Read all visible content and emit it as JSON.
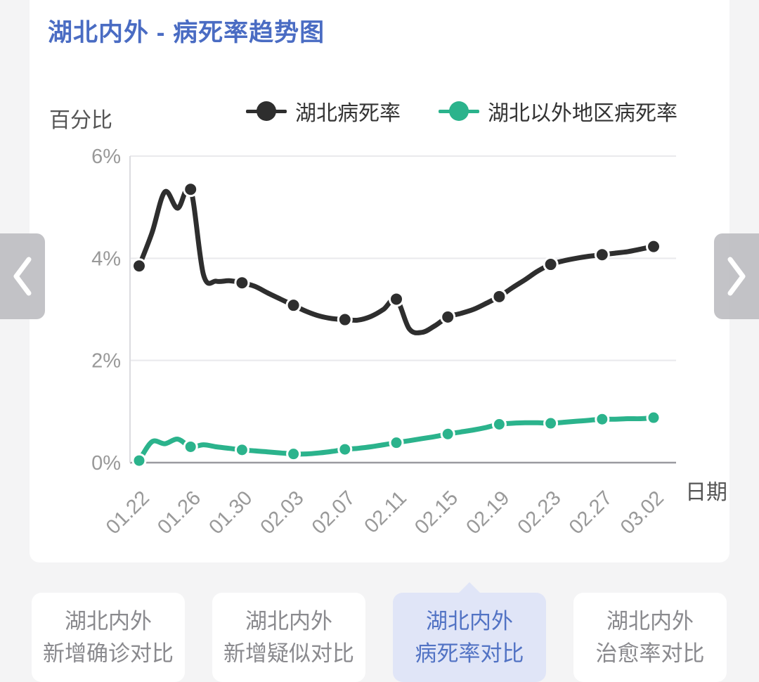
{
  "header": {
    "title": "湖北内外 - 病死率趋势图"
  },
  "chart_data": {
    "type": "line",
    "title": "湖北内外 - 病死率趋势图",
    "ylabel": "百分比",
    "xlabel": "日期",
    "ylim": [
      0,
      6
    ],
    "ytick_labels": [
      "6%",
      "4%",
      "2%",
      "0%"
    ],
    "ytick_values": [
      6,
      4,
      2,
      0
    ],
    "x_tick_labels": [
      "01.22",
      "01.26",
      "01.30",
      "02.03",
      "02.07",
      "02.11",
      "02.15",
      "02.19",
      "02.23",
      "02.27",
      "03.02"
    ],
    "x_daily_points": 41,
    "marker_every": 4,
    "grid": true,
    "legend_position": "top",
    "series": [
      {
        "name": "湖北病死率",
        "color": "#2e2e2e",
        "values": [
          3.85,
          4.5,
          5.3,
          4.98,
          5.35,
          3.68,
          3.55,
          3.56,
          3.52,
          3.45,
          3.32,
          3.2,
          3.08,
          2.96,
          2.87,
          2.82,
          2.8,
          2.79,
          2.86,
          3.0,
          3.2,
          2.62,
          2.55,
          2.68,
          2.85,
          2.92,
          3.0,
          3.12,
          3.25,
          3.42,
          3.58,
          3.75,
          3.88,
          3.95,
          4.0,
          4.04,
          4.07,
          4.1,
          4.13,
          4.18,
          4.23
        ]
      },
      {
        "name": "湖北以外地区病死率",
        "color": "#2bb38c",
        "values": [
          0.04,
          0.41,
          0.37,
          0.46,
          0.31,
          0.35,
          0.31,
          0.28,
          0.25,
          0.23,
          0.21,
          0.19,
          0.17,
          0.17,
          0.19,
          0.22,
          0.26,
          0.28,
          0.31,
          0.35,
          0.39,
          0.43,
          0.47,
          0.51,
          0.56,
          0.6,
          0.64,
          0.69,
          0.75,
          0.77,
          0.78,
          0.78,
          0.77,
          0.79,
          0.81,
          0.83,
          0.85,
          0.85,
          0.86,
          0.86,
          0.88
        ]
      }
    ]
  },
  "nav": {
    "prev_icon": "chevron-left",
    "next_icon": "chevron-right"
  },
  "tabs": [
    {
      "line1": "湖北内外",
      "line2": "新增确诊对比",
      "active": false
    },
    {
      "line1": "湖北内外",
      "line2": "新增疑似对比",
      "active": false
    },
    {
      "line1": "湖北内外",
      "line2": "病死率对比",
      "active": true
    },
    {
      "line1": "湖北内外",
      "line2": "治愈率对比",
      "active": false
    }
  ],
  "colors": {
    "title": "#4a6cc3",
    "hubei_series": "#2e2e2e",
    "outside_series": "#2bb38c",
    "active_tab_bg": "#e0e5f7",
    "active_tab_text": "#5273c4",
    "inactive_tab_text": "#8a8a8e",
    "axis_text": "#999999",
    "axis_name_text": "#555555",
    "page_bg": "#f4f4f5"
  }
}
